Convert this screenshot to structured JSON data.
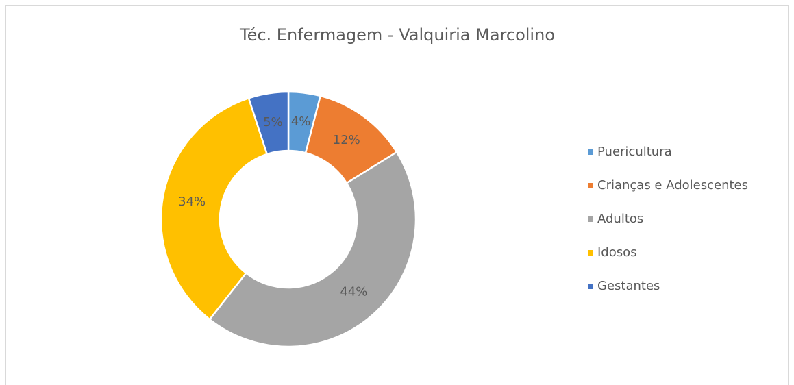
{
  "chart_data": {
    "type": "donut",
    "title": "Téc. Enfermagem - Valquiria Marcolino",
    "categories": [
      "Puericultura",
      "Crianças e Adolescentes",
      "Adultos",
      "Idosos",
      "Gestantes"
    ],
    "values": [
      4,
      12,
      44,
      34,
      5
    ],
    "value_labels": [
      "4%",
      "12%",
      "44%",
      "34%",
      "5%"
    ],
    "colors": [
      "#5b9bd5",
      "#ed7d31",
      "#a5a5a5",
      "#ffc000",
      "#4472c4"
    ],
    "legend": "right"
  }
}
